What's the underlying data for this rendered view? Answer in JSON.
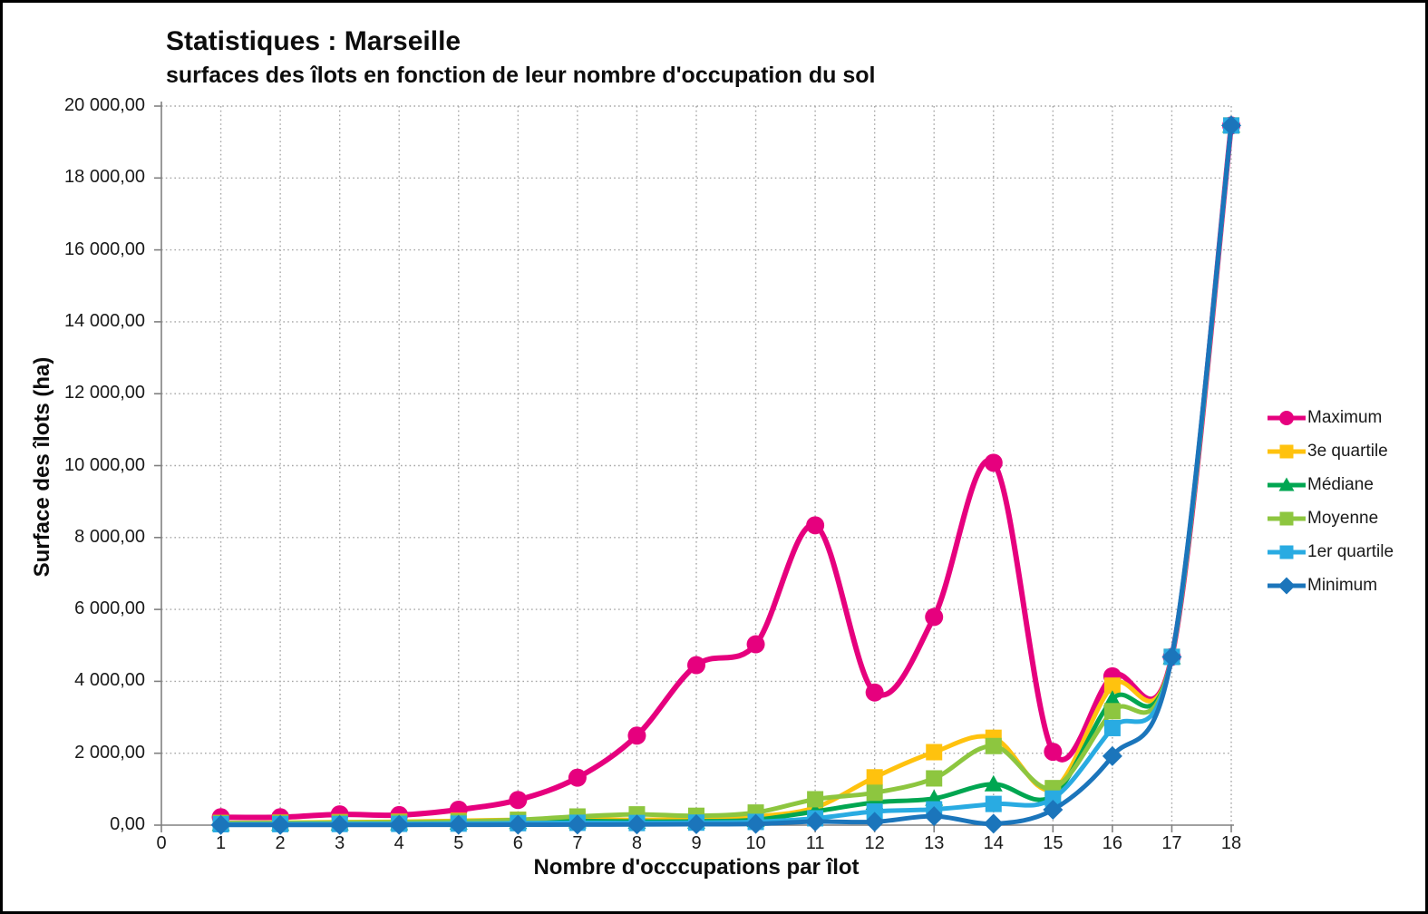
{
  "page": {
    "title": "Statistiques : Marseille",
    "subtitle": "surfaces des îlots en fonction de leur nombre d'occupation du sol"
  },
  "chart_data": {
    "type": "line",
    "title": "Statistiques : Marseille",
    "subtitle": "surfaces des îlots en fonction de leur nombre d'occupation du sol",
    "xlabel": "Nombre d'occcupations par îlot",
    "ylabel": "Surface des îlots (ha)",
    "xlim": [
      0,
      18
    ],
    "ylim": [
      0,
      20000
    ],
    "grid": "dotted horizontal and vertical",
    "legend_position": "right",
    "x_ticks": [
      0,
      1,
      2,
      3,
      4,
      5,
      6,
      7,
      8,
      9,
      10,
      11,
      12,
      13,
      14,
      15,
      16,
      17,
      18
    ],
    "x_tick_labels": [
      "0",
      "1",
      "2",
      "3",
      "4",
      "5",
      "6",
      "7",
      "8",
      "9",
      "10",
      "11",
      "12",
      "13",
      "14",
      "15",
      "16",
      "17",
      "18"
    ],
    "y_ticks": [
      0,
      2000,
      4000,
      6000,
      8000,
      10000,
      12000,
      14000,
      16000,
      18000,
      20000
    ],
    "y_tick_labels": [
      "0,00",
      "2 000,00",
      "4 000,00",
      "6 000,00",
      "8 000,00",
      "10 000,00",
      "12 000,00",
      "14 000,00",
      "16 000,00",
      "18 000,00",
      "20 000,00"
    ],
    "x": [
      1,
      2,
      3,
      4,
      5,
      6,
      7,
      8,
      9,
      10,
      11,
      12,
      13,
      14,
      15,
      16,
      17,
      18
    ],
    "series": [
      {
        "name": "Maximum",
        "color": "#E6007E",
        "marker": "circle",
        "values": [
          220,
          220,
          300,
          280,
          430,
          700,
          1320,
          2490,
          4450,
          5030,
          8340,
          3690,
          5790,
          10080,
          2040,
          4140,
          4680,
          19460
        ]
      },
      {
        "name": "3e quartile",
        "color": "#FFC20E",
        "marker": "square",
        "values": [
          60,
          70,
          85,
          95,
          120,
          150,
          170,
          150,
          170,
          240,
          490,
          1330,
          2030,
          2430,
          1000,
          3880,
          4680,
          19460
        ]
      },
      {
        "name": "Médiane",
        "color": "#00A651",
        "marker": "triangle",
        "values": [
          40,
          45,
          55,
          60,
          75,
          95,
          115,
          100,
          105,
          150,
          380,
          630,
          740,
          1140,
          820,
          3500,
          4680,
          19460
        ]
      },
      {
        "name": "Moyenne",
        "color": "#8DC63F",
        "marker": "square",
        "values": [
          55,
          60,
          70,
          80,
          100,
          145,
          240,
          300,
          260,
          350,
          720,
          900,
          1300,
          2200,
          1030,
          3170,
          4680,
          19460
        ]
      },
      {
        "name": "1er quartile",
        "color": "#29ABE2",
        "marker": "square",
        "values": [
          25,
          28,
          32,
          36,
          42,
          55,
          65,
          60,
          70,
          90,
          190,
          380,
          440,
          590,
          740,
          2700,
          4680,
          19460
        ]
      },
      {
        "name": "Minimum",
        "color": "#1B75BB",
        "marker": "diamond",
        "values": [
          5,
          5,
          6,
          8,
          10,
          12,
          15,
          20,
          25,
          35,
          100,
          90,
          250,
          40,
          430,
          1920,
          4680,
          19460
        ]
      }
    ],
    "axis_color": "#808080",
    "gridline_color": "#a6a6a6"
  }
}
